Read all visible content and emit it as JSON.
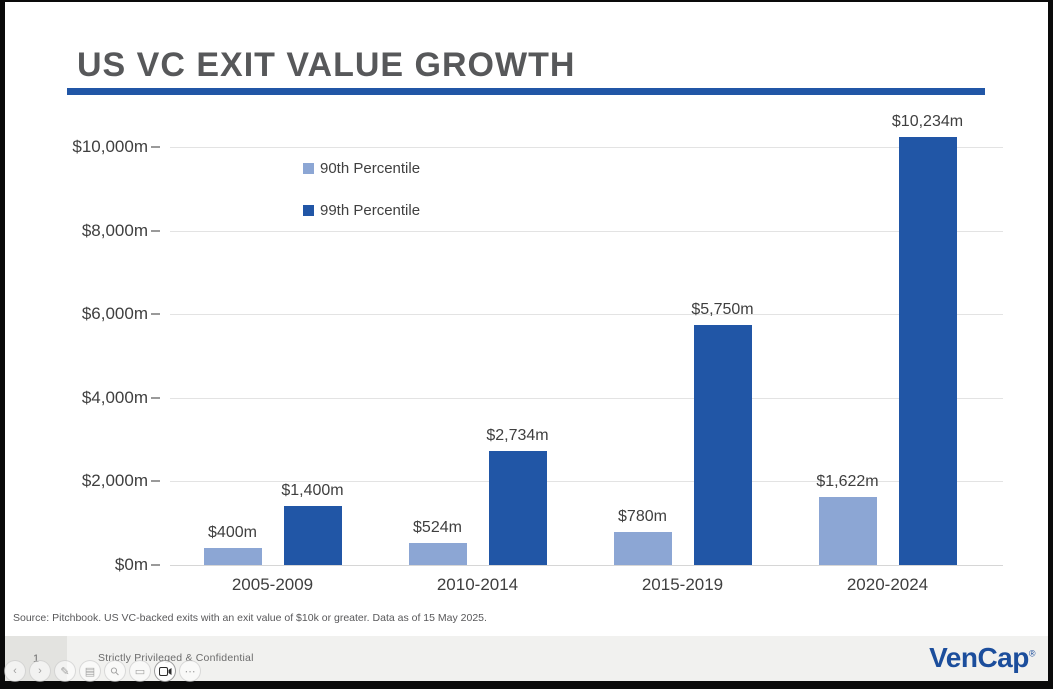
{
  "slide": {
    "title": "US VC EXIT VALUE GROWTH",
    "source_note": "Source: Pitchbook.  US VC-backed exits with an exit value of $10k or greater.  Data as of 15 May 2025."
  },
  "chart_data": {
    "type": "bar",
    "title": "US VC EXIT VALUE GROWTH",
    "categories": [
      "2005-2009",
      "2010-2014",
      "2015-2019",
      "2020-2024"
    ],
    "series": [
      {
        "name": "90th Percentile",
        "color": "#8CA6D4",
        "values": [
          400,
          524,
          780,
          1622
        ],
        "labels": [
          "$400m",
          "$524m",
          "$780m",
          "$1,622m"
        ]
      },
      {
        "name": "99th Percentile",
        "color": "#2156A6",
        "values": [
          1400,
          2734,
          5750,
          10234
        ],
        "labels": [
          "$1,400m",
          "$2,734m",
          "$5,750m",
          "$10,234m"
        ]
      }
    ],
    "ylim": [
      0,
      10000
    ],
    "y_tick_values": [
      0,
      2000,
      4000,
      6000,
      8000,
      10000
    ],
    "y_tick_labels": [
      "$0m",
      "$2,000m",
      "$4,000m",
      "$6,000m",
      "$8,000m",
      "$10,000m"
    ],
    "grid": true,
    "legend_position": "inside-top-left",
    "xlabel": "",
    "ylabel": ""
  },
  "footer": {
    "page_number": "1",
    "confidential": "Strictly Privileged & Confidential",
    "logo": "VenCap",
    "logo_mark": "®",
    "logo_color": "#1C4E9C"
  },
  "toolbar": {
    "buttons": [
      {
        "name": "previous"
      },
      {
        "name": "next"
      },
      {
        "name": "annotate"
      },
      {
        "name": "grid"
      },
      {
        "name": "magnifier"
      },
      {
        "name": "screen"
      },
      {
        "name": "camera",
        "active": true
      },
      {
        "name": "more"
      }
    ]
  },
  "colors": {
    "accent_blue": "#2156A6",
    "light_blue": "#8CA6D4",
    "title_gray": "#57585A",
    "footer_bg": "#F1F1EF",
    "logo_blue": "#1C4E9C"
  }
}
